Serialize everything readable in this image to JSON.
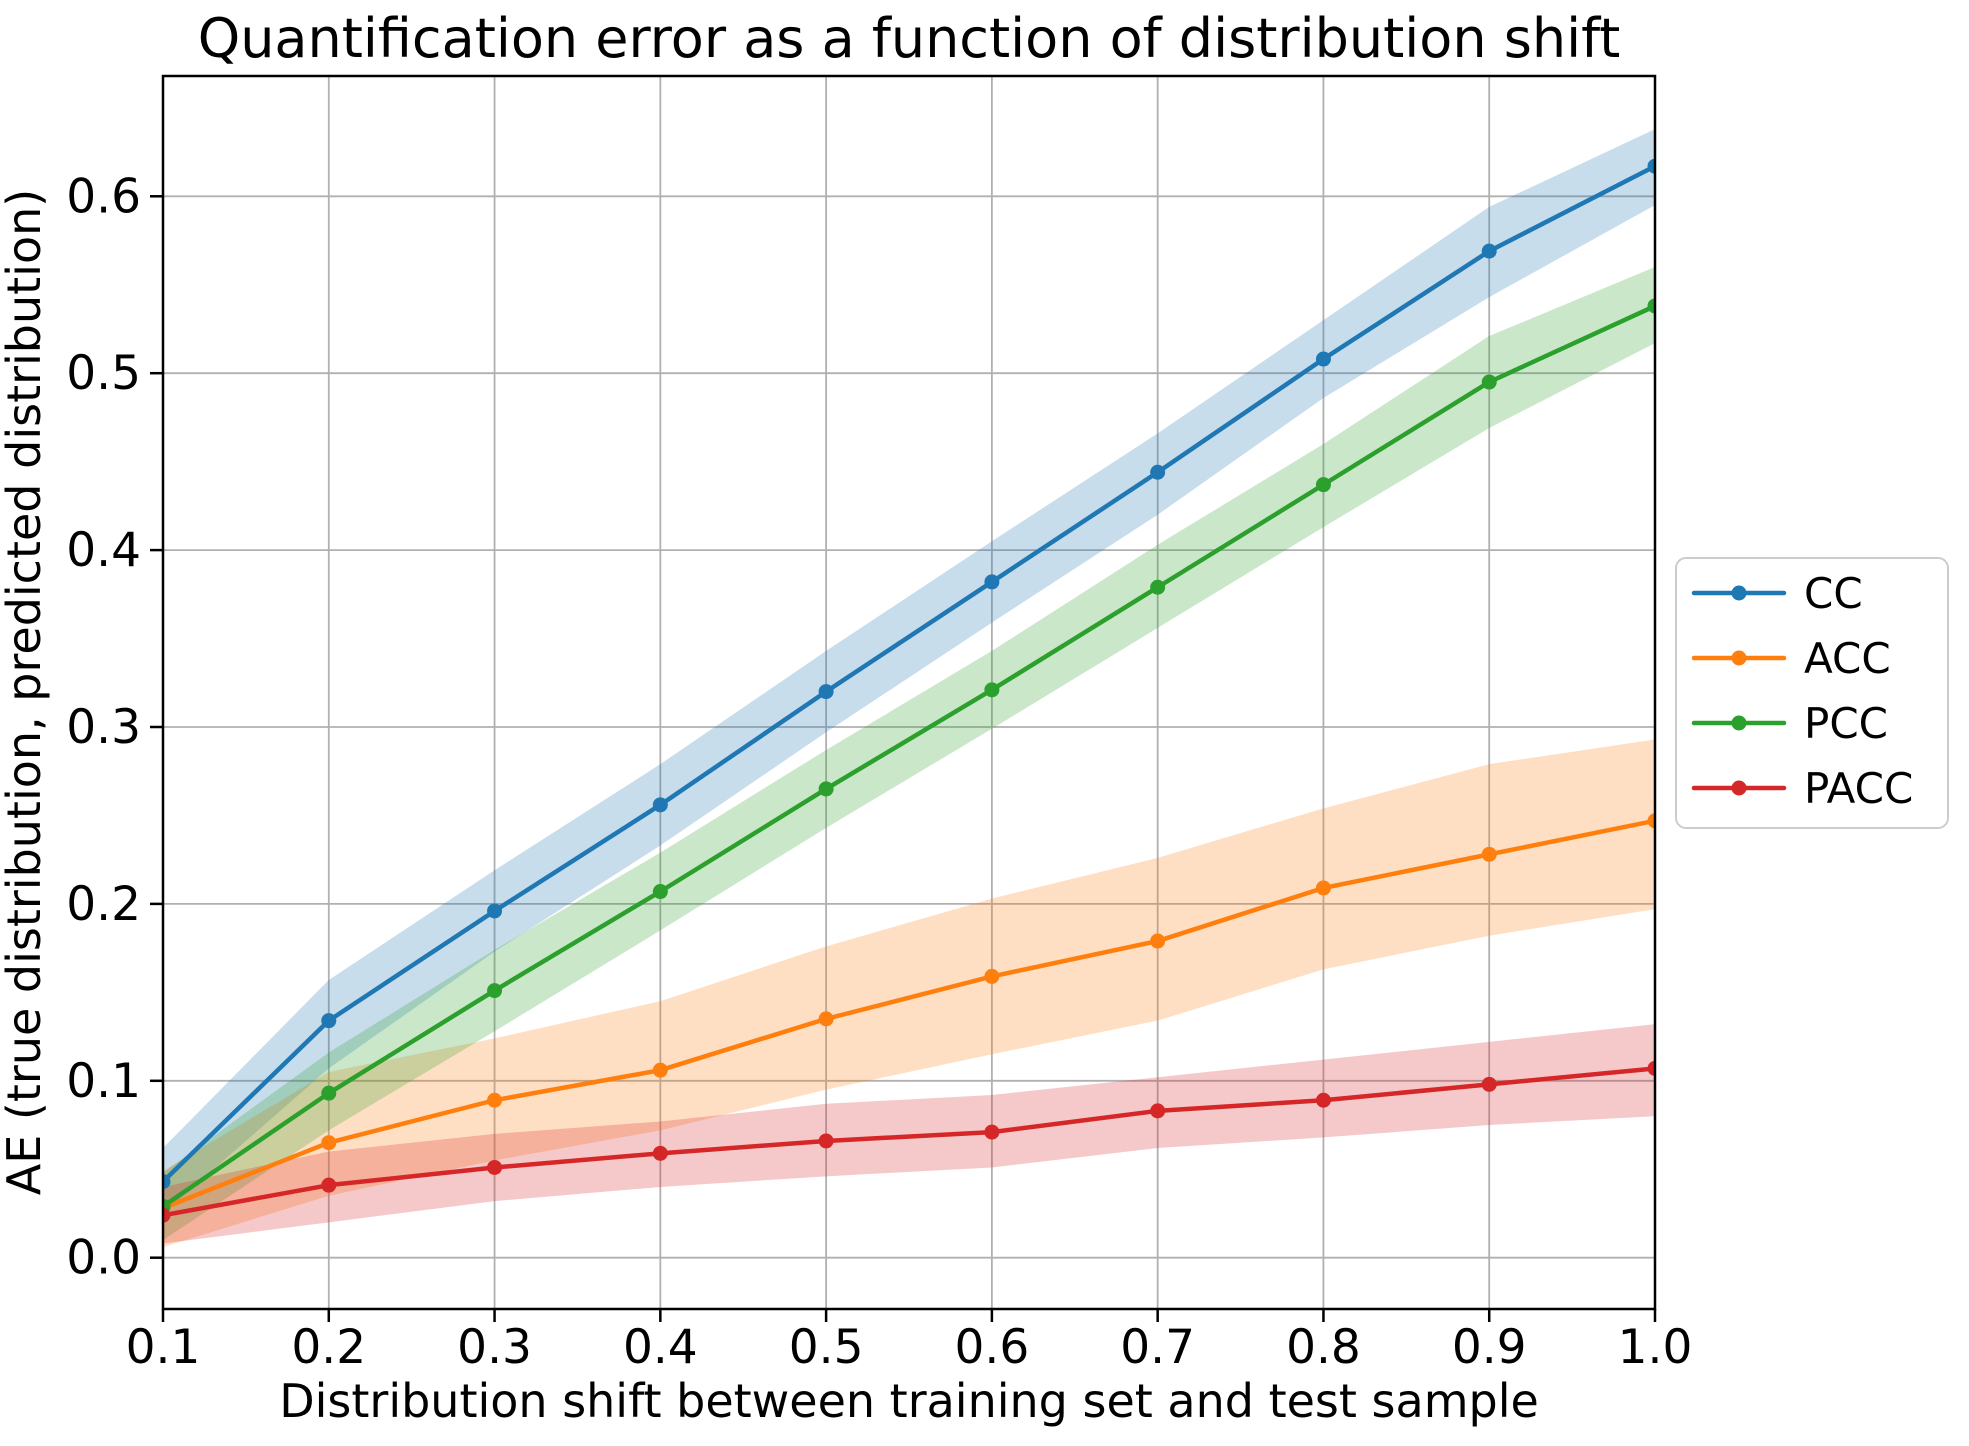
{
  "figure": {
    "background": "#ffffff",
    "plot_border_color": "#000000",
    "grid_color": "#b0b0b0"
  },
  "chart_data": {
    "type": "line",
    "title": "Quantification error as a function of distribution shift",
    "xlabel": "Distribution shift between training set and test sample",
    "ylabel": "AE (true distribution, predicted distribution)",
    "x": [
      0.1,
      0.2,
      0.3,
      0.4,
      0.5,
      0.6,
      0.7,
      0.8,
      0.9,
      1.0
    ],
    "x_tick_labels": [
      "0.1",
      "0.2",
      "0.3",
      "0.4",
      "0.5",
      "0.6",
      "0.7",
      "0.8",
      "0.9",
      "1.0"
    ],
    "y_ticks": [
      0.0,
      0.1,
      0.2,
      0.3,
      0.4,
      0.5,
      0.6
    ],
    "y_tick_labels": [
      "0.0",
      "0.1",
      "0.2",
      "0.3",
      "0.4",
      "0.5",
      "0.6"
    ],
    "xlim": [
      0.1,
      1.0
    ],
    "ylim": [
      -0.029,
      0.668
    ],
    "grid": true,
    "legend_position": "right-outside",
    "band_opacity": 0.25,
    "series": [
      {
        "name": "CC",
        "color": "#1f77b4",
        "values": [
          0.043,
          0.134,
          0.196,
          0.256,
          0.32,
          0.382,
          0.444,
          0.508,
          0.569,
          0.617
        ],
        "band_lower": [
          0.025,
          0.107,
          0.173,
          0.233,
          0.297,
          0.359,
          0.42,
          0.486,
          0.543,
          0.595
        ],
        "band_upper": [
          0.062,
          0.157,
          0.219,
          0.279,
          0.343,
          0.405,
          0.466,
          0.53,
          0.594,
          0.638
        ]
      },
      {
        "name": "ACC",
        "color": "#ff7f0e",
        "values": [
          0.028,
          0.065,
          0.089,
          0.106,
          0.135,
          0.159,
          0.179,
          0.209,
          0.228,
          0.247
        ],
        "band_lower": [
          0.006,
          0.035,
          0.055,
          0.072,
          0.095,
          0.115,
          0.134,
          0.163,
          0.182,
          0.197
        ],
        "band_upper": [
          0.049,
          0.105,
          0.124,
          0.145,
          0.176,
          0.203,
          0.226,
          0.254,
          0.279,
          0.293
        ]
      },
      {
        "name": "PCC",
        "color": "#2ca02c",
        "values": [
          0.029,
          0.093,
          0.151,
          0.207,
          0.265,
          0.321,
          0.379,
          0.437,
          0.495,
          0.538
        ],
        "band_lower": [
          0.01,
          0.072,
          0.128,
          0.185,
          0.243,
          0.299,
          0.356,
          0.413,
          0.469,
          0.517
        ],
        "band_upper": [
          0.048,
          0.116,
          0.174,
          0.229,
          0.287,
          0.343,
          0.403,
          0.46,
          0.521,
          0.56
        ]
      },
      {
        "name": "PACC",
        "color": "#d62728",
        "values": [
          0.024,
          0.041,
          0.051,
          0.059,
          0.066,
          0.071,
          0.083,
          0.089,
          0.098,
          0.107
        ],
        "band_lower": [
          0.008,
          0.02,
          0.032,
          0.04,
          0.046,
          0.051,
          0.062,
          0.068,
          0.075,
          0.08
        ],
        "band_upper": [
          0.04,
          0.06,
          0.07,
          0.077,
          0.087,
          0.092,
          0.102,
          0.112,
          0.122,
          0.132
        ]
      }
    ]
  }
}
